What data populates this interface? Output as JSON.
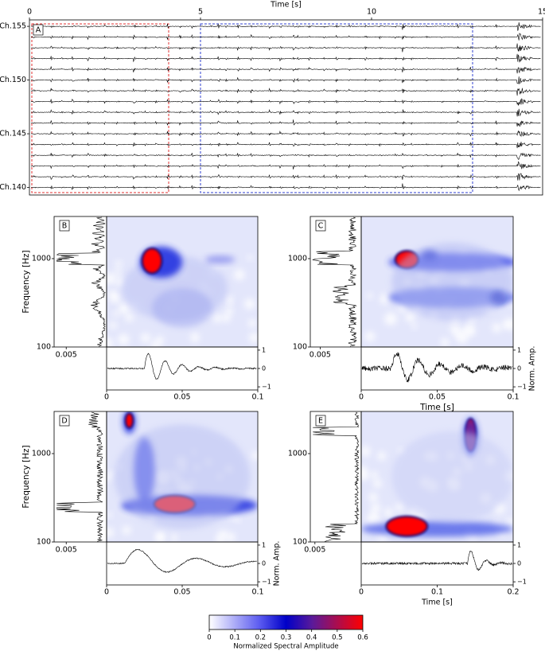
{
  "panel_a": {
    "label": "A",
    "x_label": "Time [s]",
    "xlim": [
      0,
      15
    ],
    "xticks": [
      0,
      5,
      10,
      15
    ],
    "ylim": [
      139.3,
      155.6
    ],
    "yticks": [
      {
        "value": 155,
        "label": "Ch.155"
      },
      {
        "value": 150,
        "label": "Ch.150"
      },
      {
        "value": 145,
        "label": "Ch.145"
      },
      {
        "value": 140,
        "label": "Ch.140"
      }
    ]
  },
  "panels": [
    {
      "label": "B",
      "y_label": "Frequency [Hz]",
      "ylim": [
        100,
        3000
      ],
      "yticks": [
        100,
        1000
      ],
      "xlim": [
        0,
        0.1
      ],
      "xticks": [
        0,
        0.05,
        0.1
      ],
      "spectrum_xlim": [
        0.0065,
        0
      ],
      "spectrum_xticks": [
        0.005
      ],
      "amp_ylim": [
        -1.17,
        1.17
      ],
      "amp_ticks": [
        1,
        0,
        {
          "value": -1,
          "label": "−1"
        }
      ]
    },
    {
      "label": "C",
      "ylim": [
        100,
        3000
      ],
      "yticks": [
        100,
        1000
      ],
      "xlim": [
        0,
        0.1
      ],
      "xticks": [
        0,
        0.05,
        0.1
      ],
      "x_label": "Time [s]",
      "spectrum_xlim": [
        0.0062,
        0
      ],
      "spectrum_xticks": [
        0.005
      ],
      "amp_ylim": [
        -1.17,
        1.17
      ],
      "amp_ticks": [
        1,
        0,
        {
          "value": -1,
          "label": "−1"
        }
      ],
      "amp_label": "Norm. Amp."
    },
    {
      "label": "D",
      "y_label": "Frequency [Hz]",
      "ylim": [
        100,
        3000
      ],
      "yticks": [
        100,
        1000
      ],
      "xlim": [
        0,
        0.1
      ],
      "xticks": [
        0,
        0.05,
        0.1
      ],
      "spectrum_xlim": [
        0.0065,
        0
      ],
      "spectrum_xticks": [
        0.005
      ],
      "amp_ylim": [
        -1.17,
        1.17
      ],
      "amp_ticks": [
        1,
        0,
        {
          "value": -1,
          "label": "−1"
        }
      ],
      "amp_label": "Norm. Amp."
    },
    {
      "label": "E",
      "ylim": [
        100,
        3000
      ],
      "yticks": [
        100,
        1000
      ],
      "xlim": [
        0,
        0.2
      ],
      "xticks": [
        0,
        0.1,
        0.2
      ],
      "x_label": "Time [s]",
      "spectrum_xlim": [
        0.0055,
        0
      ],
      "spectrum_xticks": [
        0.005
      ],
      "amp_ylim": [
        -1.17,
        1.17
      ],
      "amp_ticks": [
        1,
        0,
        {
          "value": -1,
          "label": "−1"
        }
      ]
    }
  ],
  "colorbar": {
    "label": "Normalized Spectral Amplitude",
    "lim": [
      0,
      0.6
    ],
    "ticks": [
      0,
      0.1,
      0.2,
      0.3,
      0.4,
      0.5,
      0.6
    ]
  }
}
